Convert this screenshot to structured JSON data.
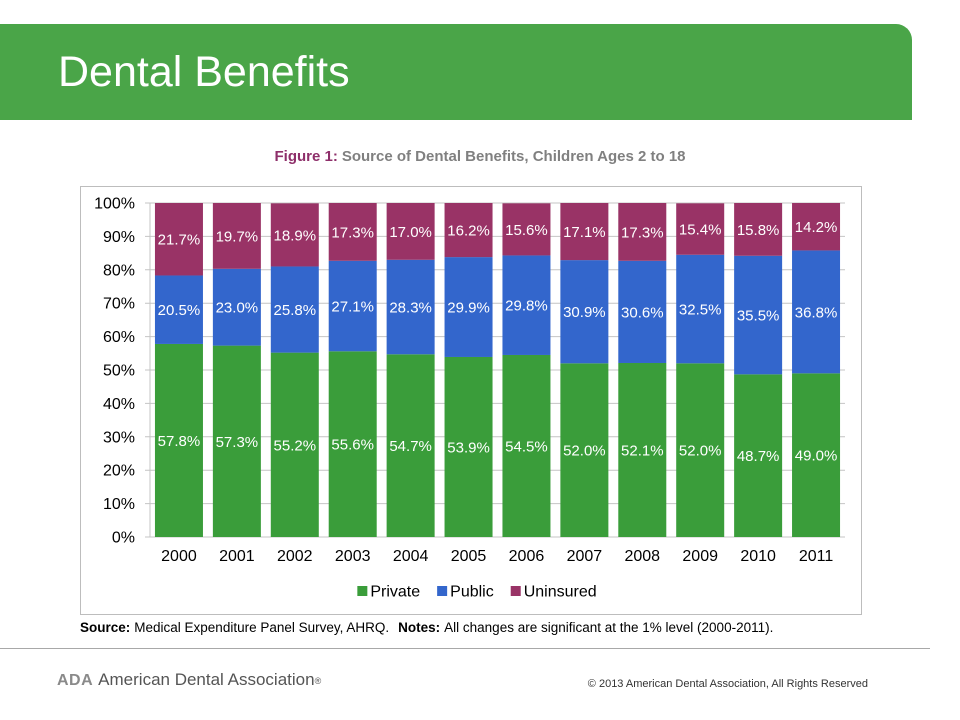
{
  "header": {
    "title": "Dental Benefits"
  },
  "chart_data": {
    "type": "bar",
    "stacked": true,
    "title_prefix": "Figure 1:",
    "title": "Source of Dental Benefits, Children Ages 2 to 18",
    "categories": [
      "2000",
      "2001",
      "2002",
      "2003",
      "2004",
      "2005",
      "2006",
      "2007",
      "2008",
      "2009",
      "2010",
      "2011"
    ],
    "series": [
      {
        "name": "Private",
        "color": "#3a9d3a",
        "values": [
          57.8,
          57.3,
          55.2,
          55.6,
          54.7,
          53.9,
          54.5,
          52.0,
          52.1,
          52.0,
          48.7,
          49.0
        ]
      },
      {
        "name": "Public",
        "color": "#3366cc",
        "values": [
          20.5,
          23.0,
          25.8,
          27.1,
          28.3,
          29.9,
          29.8,
          30.9,
          30.6,
          32.5,
          35.5,
          36.8
        ]
      },
      {
        "name": "Uninsured",
        "color": "#993366",
        "values": [
          21.7,
          19.7,
          18.9,
          17.3,
          17.0,
          16.2,
          15.6,
          17.1,
          17.3,
          15.4,
          15.8,
          14.2
        ]
      }
    ],
    "ylim": [
      0,
      100
    ],
    "yticks": [
      0,
      10,
      20,
      30,
      40,
      50,
      60,
      70,
      80,
      90,
      100
    ],
    "ytick_labels": [
      "0%",
      "10%",
      "20%",
      "30%",
      "40%",
      "50%",
      "60%",
      "70%",
      "80%",
      "90%",
      "100%"
    ],
    "value_labels": true,
    "value_suffix": "%",
    "grid": true,
    "legend": "bottom"
  },
  "footnote": {
    "source_label": "Source:",
    "source_text": "Medical Expenditure Panel Survey, AHRQ.",
    "notes_label": "Notes:",
    "notes_text": "All changes are significant at the 1% level (2000-2011)."
  },
  "footer": {
    "logo_abbr": "ADA",
    "logo_name": "American Dental Association",
    "logo_mark": "®",
    "copyright": "© 2013 American Dental Association, All Rights Reserved"
  },
  "colors": {
    "header_green": "#4aa548",
    "figure_label": "#8e2f6a",
    "caption_gray": "#808080"
  }
}
